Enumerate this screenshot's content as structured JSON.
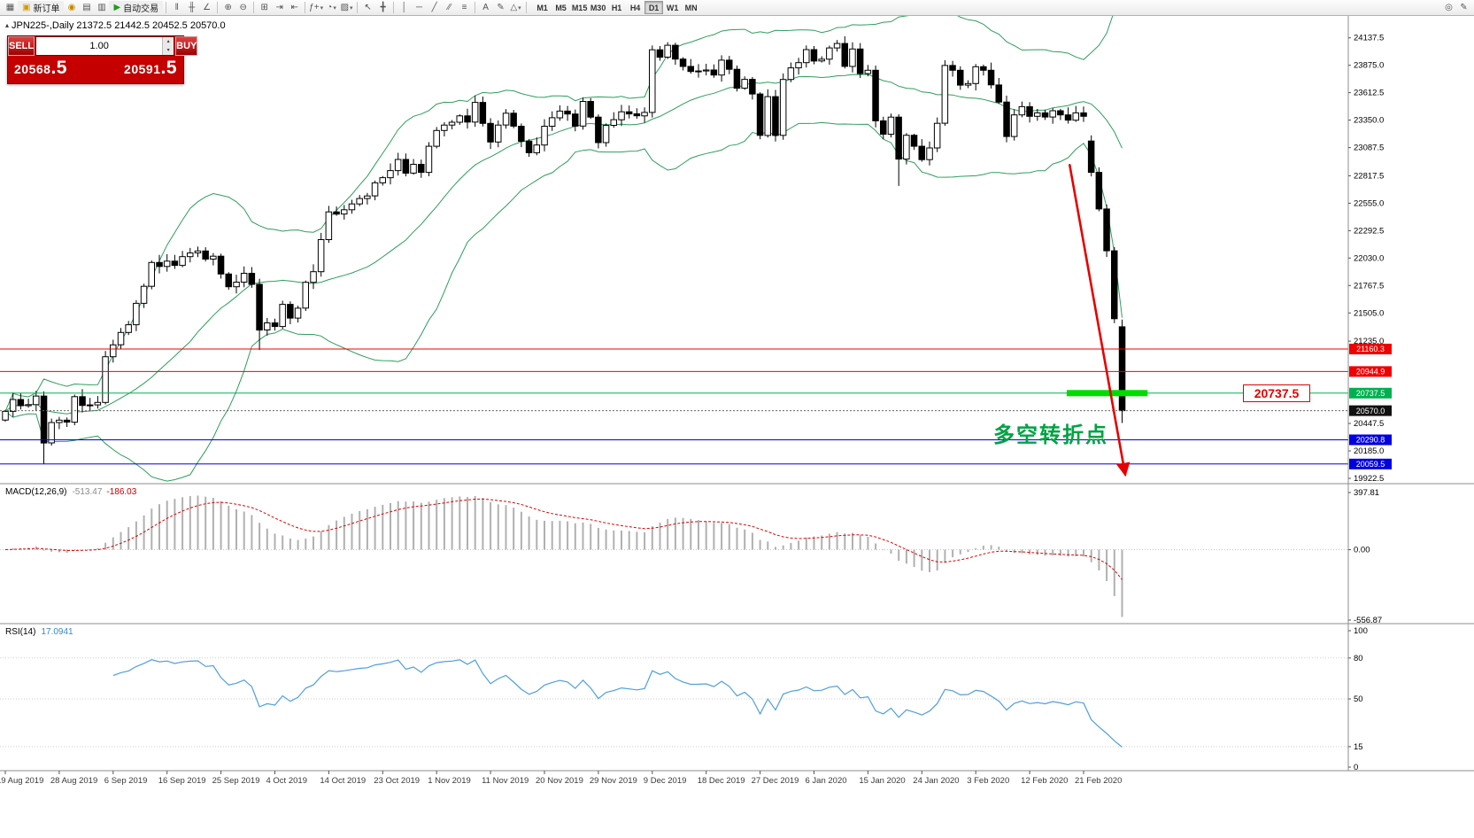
{
  "icons": {
    "new_window": "▦",
    "order_doc": "▣",
    "coin": "◉",
    "profiles": "▤",
    "print": "▥",
    "play": "▶",
    "chart_bars": "ǁ",
    "chart_candles": "╫",
    "chart_line": "∠",
    "zoom_in": "⊕",
    "zoom_out": "⊖",
    "grid": "⊞",
    "auto_scroll": "⇥",
    "chart_shift": "⇤",
    "indicators": "ƒ+",
    "periods": "◔",
    "templates": "▨",
    "cursor": "↖",
    "crosshair": "╋",
    "vline": "│",
    "hline": "─",
    "trendline": "╱",
    "channel": "∕∕",
    "fibo": "≡",
    "text": "A",
    "label": "✎",
    "shapes": "△",
    "dropdown": "▾",
    "magnifier": "◎",
    "edit": "✎",
    "spin_up": "▴",
    "spin_down": "▾",
    "expand_triangle": "▴"
  },
  "toolbar": {
    "new_order_label": "新订单",
    "autotrade_label": "自动交易",
    "timeframes": [
      "M1",
      "M5",
      "M15",
      "M30",
      "H1",
      "H4",
      "D1",
      "W1",
      "MN"
    ],
    "active_timeframe": "D1"
  },
  "symbol_info_line": "JPN225-,Daily 21372.5 21442.5 20452.5 20570.0",
  "trade_panel": {
    "sell_label": "SELL",
    "buy_label": "BUY",
    "volume": "1.00",
    "sell_price_main": "20568",
    "sell_price_frac": ".5",
    "buy_price_main": "20591",
    "buy_price_frac": ".5"
  },
  "annotations": {
    "price_flag": "20737.5",
    "turning_point_text": "多空转折点"
  },
  "chart_data": {
    "type": "candlestick",
    "symbol": "JPN225-",
    "timeframe": "Daily",
    "last_ohlc": {
      "open": 21372.5,
      "high": 21442.5,
      "low": 20452.5,
      "close": 20570.0
    },
    "price_axis": {
      "min": 19880,
      "max": 24330,
      "tick_labels": [
        "24137.5",
        "23875.0",
        "23612.5",
        "23350.0",
        "23087.5",
        "22817.5",
        "22555.0",
        "22292.5",
        "22030.0",
        "21767.5",
        "21505.0",
        "21235.0",
        "20447.5",
        "20185.0",
        "19922.5"
      ]
    },
    "hlines": [
      {
        "price": 21160.3,
        "label": "21160.3",
        "color": "#f00000"
      },
      {
        "price": 20944.9,
        "label": "20944.9",
        "color": "#f00000"
      },
      {
        "price": 20737.5,
        "label": "20737.5",
        "color": "#00b050"
      },
      {
        "price": 20290.8,
        "label": "20290.8",
        "color": "#0000e0"
      },
      {
        "price": 20059.5,
        "label": "20059.5",
        "color": "#0000e0"
      }
    ],
    "current_price": {
      "value": 20570.0,
      "label": "20570.0"
    },
    "closes": [
      20563,
      20677,
      20618,
      20628,
      20710,
      20261,
      20456,
      20479,
      20460,
      20704,
      20620,
      20625,
      20649,
      21086,
      21200,
      21318,
      21392,
      21597,
      21760,
      21988,
      21950,
      22001,
      21960,
      22044,
      22079,
      22098,
      22020,
      22048,
      21878,
      21756,
      21800,
      21885,
      21779,
      21342,
      21410,
      21375,
      21587,
      21456,
      21551,
      21798,
      21900,
      22207,
      22472,
      22451,
      22492,
      22548,
      22600,
      22625,
      22750,
      22799,
      22867,
      22974,
      22843,
      22927,
      22850,
      23100,
      23251,
      23303,
      23330,
      23391,
      23332,
      23520,
      23319,
      23141,
      23303,
      23416,
      23292,
      23148,
      23038,
      23112,
      23292,
      23373,
      23437,
      23409,
      23293,
      23529,
      23379,
      23135,
      23300,
      23354,
      23430,
      23410,
      23391,
      23424,
      24023,
      23952,
      24066,
      23934,
      23864,
      23816,
      23821,
      23830,
      23782,
      23924,
      23837,
      23656,
      23740,
      23600,
      23204,
      23575,
      23204,
      23739,
      23850,
      23900,
      24025,
      23916,
      23933,
      24041,
      24083,
      23864,
      24031,
      23795,
      23827,
      23343,
      23215,
      23379,
      22977,
      23205,
      23100,
      22972,
      23084,
      23320,
      23873,
      23827,
      23685,
      23700,
      23861,
      23827,
      23687,
      23523,
      23193,
      23400,
      23479,
      23387,
      23420,
      23380,
      23440,
      23400,
      23350,
      23420,
      23387,
      22850,
      22500,
      22100,
      21450,
      20570
    ],
    "open_overrides": {
      "0": 20480,
      "141": 23150,
      "145": 21372.5
    },
    "high_overrides": {
      "108": 24116,
      "145": 21442.5
    },
    "low_overrides": {
      "5": 20060,
      "33": 21150,
      "116": 22720,
      "145": 20452.5
    },
    "bollinger": {
      "period": 20,
      "deviation": 2
    },
    "highlight_segment": {
      "start_index": 137.8,
      "end_index": 148.3,
      "price": 20737.5,
      "color": "#00dc00"
    },
    "trend_arrow": {
      "color": "#e60000",
      "points": [
        {
          "index": 138.2,
          "price": 22920
        },
        {
          "index": 142.6,
          "price": 21110
        },
        {
          "index": 145.4,
          "price": 19960
        }
      ]
    },
    "macd": {
      "label": "MACD(12,26,9)",
      "value_main": "-513.47",
      "value_signal": "-186.03",
      "params": [
        12,
        26,
        9
      ],
      "axis_ticks": [
        "397.81",
        "0.00",
        "-556.87"
      ]
    },
    "rsi": {
      "label": "RSI(14)",
      "value": "17.0941",
      "period": 14,
      "axis_ticks": [
        100,
        80,
        50,
        15,
        0
      ],
      "levels": [
        80,
        50,
        15
      ]
    },
    "date_axis": [
      "19 Aug 2019",
      "28 Aug 2019",
      "6 Sep 2019",
      "16 Sep 2019",
      "25 Sep 2019",
      "4 Oct 2019",
      "14 Oct 2019",
      "23 Oct 2019",
      "1 Nov 2019",
      "11 Nov 2019",
      "20 Nov 2019",
      "29 Nov 2019",
      "9 Dec 2019",
      "18 Dec 2019",
      "27 Dec 2019",
      "6 Jan 2020",
      "15 Jan 2020",
      "24 Jan 2020",
      "3 Feb 2020",
      "12 Feb 2020",
      "21 Feb 2020"
    ],
    "tick_every": 7
  }
}
